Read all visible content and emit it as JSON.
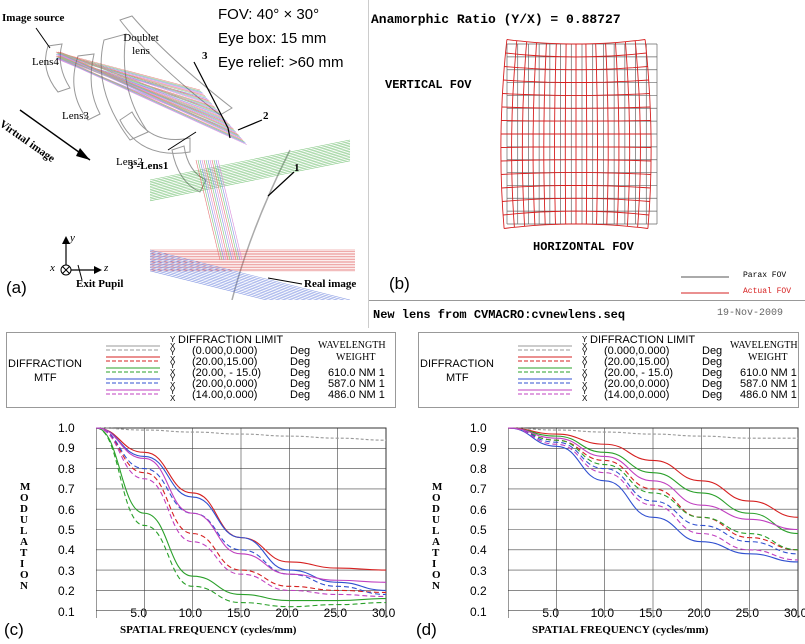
{
  "panel_a": {
    "label": "(a)",
    "specs": [
      "FOV: 40°  × 30°",
      "Eye box: 15 mm",
      "Eye relief: >60 mm"
    ],
    "labels": {
      "image_source": "Image source",
      "lens4": "Lens4",
      "lens3": "Lens3",
      "doublet": "Doublet lens",
      "lens2": "Lens2",
      "lens1": "3'-Lens1",
      "virtual_image": "Virtual image",
      "exit_pupil": "Exit Pupil",
      "real_image": "Real image",
      "n1": "1",
      "n2": "2",
      "n3": "3",
      "axis_y": "y",
      "axis_z": "z",
      "axis_x": "x"
    }
  },
  "panel_b": {
    "label": "(b)",
    "ratio_text": "Anamorphic Ratio (Y/X) =  0.88727",
    "vertical_fov": "VERTICAL FOV",
    "horizontal_fov": "HORIZONTAL FOV",
    "legend": [
      "Parax FOV",
      "Actual FOV"
    ],
    "footer_left": "New lens from  CVMACRO:cvnewlens.seq",
    "footer_right": "19-Nov-2009",
    "colors": {
      "parax": "#555555",
      "actual": "#d62020"
    }
  },
  "mtf_legend": {
    "diffraction_mtf": [
      "DIFFRACTION",
      "MTF"
    ],
    "limit_header": "DIFFRACTION LIMIT",
    "wavelength_header": [
      "WAVELENGTH",
      "WEIGHT"
    ],
    "field_marks": [
      "Y",
      "X",
      "Y",
      "X",
      "Y",
      "X",
      "Y",
      "X",
      "Y",
      "X"
    ],
    "fields": [
      "(0.000,0.000)",
      "(20.00,15.00)",
      "(20.00, - 15.0)",
      "(20.00,0.000)",
      "(14.00,0.000)"
    ],
    "units": [
      "Deg",
      "Deg",
      "Deg",
      "Deg",
      "Deg"
    ],
    "wavelengths": [
      "610.0 NM 1",
      "587.0 NM 1",
      "486.0 NM 1"
    ],
    "line_colors": [
      "#999999",
      "#d62020",
      "#2aa02a",
      "#3050d0",
      "#c040c0"
    ]
  },
  "panel_c": {
    "label": "(c)"
  },
  "panel_d": {
    "label": "(d)"
  },
  "mtf_axes": {
    "ylabel": [
      "M",
      "O",
      "D",
      "U",
      "L",
      "A",
      "T",
      "I",
      "O",
      "N"
    ],
    "xlabel": "SPATIAL FREQUENCY (cycles/mm)",
    "yticks": [
      "1.0",
      "0.9",
      "0.8",
      "0.7",
      "0.6",
      "0.5",
      "0.4",
      "0.3",
      "0.2",
      "0.1"
    ],
    "xticks": [
      "5.0",
      "10.0",
      "15.0",
      "20.0",
      "25.0",
      "30.0"
    ]
  },
  "chart_data": [
    {
      "type": "line",
      "xlabel": "SPATIAL FREQUENCY (cycles/mm)",
      "ylabel": "MODULATION",
      "xlim": [
        0,
        30
      ],
      "ylim": [
        0,
        1
      ],
      "grid": true,
      "x": [
        0,
        5,
        10,
        15,
        20,
        25,
        30
      ],
      "series": [
        {
          "color": "#999999",
          "values": [
            1.0,
            0.99,
            0.98,
            0.97,
            0.96,
            0.95,
            0.94
          ]
        },
        {
          "color": "#d62020",
          "values": [
            1.0,
            0.88,
            0.68,
            0.46,
            0.34,
            0.31,
            0.3
          ]
        },
        {
          "color": "#d62020",
          "values": [
            1.0,
            0.78,
            0.48,
            0.3,
            0.22,
            0.2,
            0.19
          ]
        },
        {
          "color": "#2aa02a",
          "values": [
            1.0,
            0.58,
            0.27,
            0.18,
            0.15,
            0.15,
            0.16
          ]
        },
        {
          "color": "#2aa02a",
          "values": [
            1.0,
            0.52,
            0.22,
            0.14,
            0.12,
            0.13,
            0.14
          ]
        },
        {
          "color": "#3050d0",
          "values": [
            1.0,
            0.86,
            0.66,
            0.46,
            0.3,
            0.24,
            0.2
          ]
        },
        {
          "color": "#3050d0",
          "values": [
            1.0,
            0.8,
            0.58,
            0.4,
            0.28,
            0.22,
            0.18
          ]
        },
        {
          "color": "#c040c0",
          "values": [
            1.0,
            0.85,
            0.58,
            0.38,
            0.28,
            0.25,
            0.24
          ]
        },
        {
          "color": "#c040c0",
          "values": [
            1.0,
            0.75,
            0.44,
            0.28,
            0.2,
            0.18,
            0.17
          ]
        }
      ]
    },
    {
      "type": "line",
      "xlabel": "SPATIAL FREQUENCY (cycles/mm)",
      "ylabel": "MODULATION",
      "xlim": [
        0,
        30
      ],
      "ylim": [
        0,
        1
      ],
      "grid": true,
      "x": [
        0,
        5,
        10,
        15,
        20,
        25,
        30
      ],
      "series": [
        {
          "color": "#999999",
          "values": [
            1.0,
            0.99,
            0.98,
            0.97,
            0.96,
            0.95,
            0.95
          ]
        },
        {
          "color": "#d62020",
          "values": [
            1.0,
            0.97,
            0.92,
            0.84,
            0.74,
            0.64,
            0.56
          ]
        },
        {
          "color": "#d62020",
          "values": [
            1.0,
            0.94,
            0.84,
            0.7,
            0.56,
            0.46,
            0.4
          ]
        },
        {
          "color": "#2aa02a",
          "values": [
            1.0,
            0.96,
            0.88,
            0.78,
            0.68,
            0.58,
            0.48
          ]
        },
        {
          "color": "#2aa02a",
          "values": [
            1.0,
            0.94,
            0.82,
            0.68,
            0.56,
            0.48,
            0.4
          ]
        },
        {
          "color": "#3050d0",
          "values": [
            1.0,
            0.91,
            0.74,
            0.56,
            0.44,
            0.38,
            0.34
          ]
        },
        {
          "color": "#3050d0",
          "values": [
            1.0,
            0.93,
            0.8,
            0.64,
            0.52,
            0.44,
            0.38
          ]
        },
        {
          "color": "#c040c0",
          "values": [
            1.0,
            0.95,
            0.86,
            0.74,
            0.62,
            0.55,
            0.5
          ]
        },
        {
          "color": "#c040c0",
          "values": [
            1.0,
            0.92,
            0.78,
            0.62,
            0.48,
            0.4,
            0.35
          ]
        }
      ]
    }
  ]
}
